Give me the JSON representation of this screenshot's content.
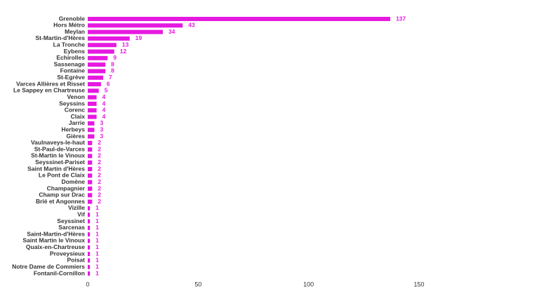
{
  "chart_data": {
    "type": "hbar",
    "categories": [
      "Grenoble",
      "Hors Métro",
      "Meylan",
      "St-Martin-d'Hères",
      "La Tronche",
      "Eybens",
      "Echirolles",
      "Sassenage",
      "Fontaine",
      "St-Egrève",
      "Varces Allières et Risset",
      "Le Sappey en Chartreuse",
      "Venon",
      "Seyssins",
      "Corenc",
      "Claix",
      "Jarrie",
      "Herbeys",
      "Gières",
      "Vaulnaveys-le-haut",
      "St-Paul-de-Varces",
      "St-Martin le Vinoux",
      "Seyssinet-Pariset",
      "Saint Martin d'Hères",
      "Le Pont de Claix",
      "Domène",
      "Champagnier",
      "Champ sur Drac",
      "Brié et Angonnes",
      "Vizille",
      "Vif",
      "Seyssinet",
      "Sarcenas",
      "Saint-Martin-d'Hères",
      "Saint Martin le Vinoux",
      "Quaix-en-Chartreuse",
      "Proveysieux",
      "Poisat",
      "Notre Dame de Commiers",
      "Fontanil-Cornillon"
    ],
    "values": [
      137,
      43,
      34,
      19,
      13,
      12,
      9,
      8,
      8,
      7,
      6,
      5,
      4,
      4,
      4,
      4,
      3,
      3,
      3,
      2,
      2,
      2,
      2,
      2,
      2,
      2,
      2,
      2,
      2,
      1,
      1,
      1,
      1,
      1,
      1,
      1,
      1,
      1,
      1,
      1
    ],
    "color": "#e619e0",
    "xlim": [
      0,
      150
    ],
    "xticks": [
      0,
      50,
      100,
      150
    ],
    "grid": false
  }
}
